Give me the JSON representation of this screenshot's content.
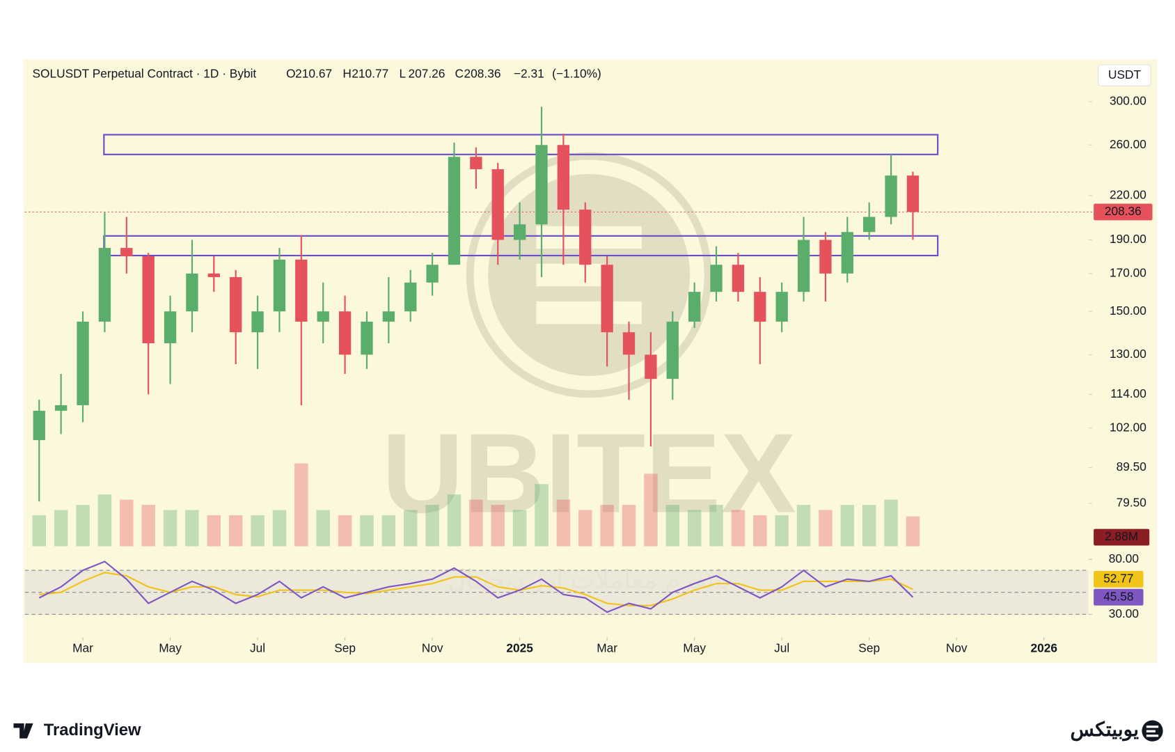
{
  "chart_data": [
    {
      "type": "candlestick",
      "title": "SOLUSDT Perpetual Contract · 1D · Bybit",
      "ohlc": [
        {
          "letter": "O",
          "value": 210.67
        },
        {
          "letter": "H",
          "value": 210.77
        },
        {
          "letter": "L",
          "value": 207.26
        },
        {
          "letter": "C",
          "value": 208.36
        }
      ],
      "change": {
        "value": -2.31,
        "label": "−2.31"
      },
      "change_pct": {
        "value": -1.1,
        "label": "(−1.10%)"
      },
      "currency": "USDT",
      "log_scale": true,
      "grid": false,
      "up_color": "#5aad6a",
      "down_color": "#e5525b",
      "categories": [
        null,
        null,
        "Mar",
        null,
        null,
        null,
        "May",
        null,
        null,
        null,
        "Jul",
        null,
        null,
        null,
        "Sep",
        null,
        null,
        null,
        "Nov",
        null,
        null,
        null,
        "2025",
        null,
        null,
        null,
        "Mar",
        null,
        null,
        null,
        "May",
        null,
        null,
        null,
        "Jul",
        null,
        null,
        null,
        "Sep",
        null,
        null,
        null,
        "Nov",
        null,
        null,
        null,
        "2026",
        null
      ],
      "open": [
        98,
        108,
        110,
        145,
        185,
        180,
        135,
        150,
        170,
        168,
        140,
        150,
        178,
        145,
        150,
        130,
        145,
        150,
        165,
        175,
        250,
        240,
        190,
        200,
        260,
        210,
        175,
        140,
        130,
        120,
        145,
        160,
        175,
        160,
        145,
        160,
        190,
        170,
        195,
        205,
        235,
        null,
        null,
        null,
        null,
        null,
        null,
        null
      ],
      "high": [
        112,
        122,
        150,
        208,
        205,
        182,
        158,
        190,
        180,
        172,
        158,
        185,
        193,
        165,
        158,
        150,
        168,
        172,
        182,
        262,
        258,
        245,
        215,
        295,
        270,
        215,
        180,
        145,
        140,
        150,
        165,
        186,
        182,
        168,
        165,
        205,
        195,
        205,
        215,
        252,
        238,
        null,
        null,
        null,
        null,
        null,
        null,
        null
      ],
      "low": [
        80,
        100,
        104,
        140,
        170,
        114,
        118,
        140,
        160,
        126,
        124,
        140,
        110,
        135,
        122,
        124,
        135,
        145,
        158,
        175,
        225,
        175,
        178,
        168,
        175,
        165,
        125,
        112,
        96,
        112,
        142,
        155,
        155,
        126,
        140,
        155,
        155,
        165,
        190,
        200,
        190,
        null,
        null,
        null,
        null,
        null,
        null,
        null
      ],
      "close": [
        108,
        110,
        145,
        185,
        180,
        135,
        150,
        170,
        168,
        140,
        150,
        178,
        145,
        150,
        130,
        145,
        150,
        165,
        175,
        250,
        240,
        190,
        200,
        260,
        210,
        175,
        140,
        130,
        120,
        145,
        160,
        175,
        160,
        145,
        160,
        190,
        170,
        195,
        205,
        235,
        208.36,
        null,
        null,
        null,
        null,
        null,
        null,
        null
      ],
      "volume": [
        3,
        3.5,
        4,
        5,
        4.5,
        4,
        3.5,
        3.5,
        3,
        3,
        3,
        3.5,
        8,
        3.5,
        3,
        3,
        3,
        3.5,
        4,
        5,
        4.5,
        4,
        3.5,
        6,
        4.5,
        3.5,
        4,
        4,
        7,
        4,
        3.5,
        4,
        3.5,
        3,
        3,
        4,
        3.5,
        4,
        4,
        4.5,
        2.88,
        null,
        null,
        null,
        null,
        null,
        null,
        null
      ],
      "volume_label": "2.88M",
      "last_price": 208.36,
      "zones": [
        {
          "low": 252,
          "high": 269,
          "color": "#6a4fc8"
        },
        {
          "low": 180.4,
          "high": 192.5,
          "color": "#6a4fc8"
        }
      ],
      "ylim": [
        69,
        344
      ],
      "yticks": [
        {
          "value": 300,
          "label": "300.00"
        },
        {
          "value": 260,
          "label": "260.00"
        },
        {
          "value": 220,
          "label": "220.00"
        },
        {
          "value": 190,
          "label": "190.00"
        },
        {
          "value": 170,
          "label": "170.00"
        },
        {
          "value": 150,
          "label": "150.00"
        },
        {
          "value": 130,
          "label": "130.00"
        },
        {
          "value": 114,
          "label": "114.00"
        },
        {
          "value": 102,
          "label": "102.00"
        },
        {
          "value": 89.5,
          "label": "89.50"
        },
        {
          "value": 79.5,
          "label": "79.50"
        }
      ]
    },
    {
      "type": "line",
      "ylim": [
        20,
        85
      ],
      "yticks": [
        {
          "value": 80,
          "label": "80.00"
        },
        {
          "value": 30,
          "label": "30.00"
        }
      ],
      "bands": [
        70,
        50,
        30
      ],
      "series": [
        {
          "color": "#f0c419",
          "values": [
            48,
            50,
            60,
            68,
            65,
            55,
            50,
            55,
            55,
            48,
            46,
            52,
            52,
            52,
            50,
            49,
            52,
            55,
            58,
            64,
            64,
            55,
            52,
            56,
            54,
            48,
            40,
            38,
            38,
            44,
            52,
            58,
            58,
            52,
            52,
            60,
            60,
            60,
            60,
            62,
            52.77,
            null,
            null,
            null,
            null,
            null,
            null,
            null
          ]
        },
        {
          "color": "#7e57c2",
          "values": [
            45,
            55,
            70,
            78,
            62,
            40,
            50,
            60,
            52,
            40,
            48,
            60,
            45,
            55,
            45,
            50,
            55,
            58,
            62,
            72,
            60,
            45,
            52,
            62,
            48,
            45,
            32,
            40,
            35,
            50,
            58,
            65,
            55,
            45,
            55,
            70,
            55,
            62,
            60,
            65,
            45.58,
            null,
            null,
            null,
            null,
            null,
            null,
            null
          ]
        }
      ]
    }
  ],
  "watermark": {
    "brand": "UBITEX",
    "tagline": "پلتفرم معاملات ارز دیجیتال"
  },
  "footer": {
    "left": "TradingView",
    "right": "یوبیتکس"
  }
}
